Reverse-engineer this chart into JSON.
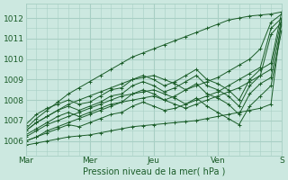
{
  "xlabel": "Pression niveau de la mer( hPa )",
  "xlim": [
    0,
    96
  ],
  "ylim": [
    1005.3,
    1012.7
  ],
  "yticks": [
    1006,
    1007,
    1008,
    1009,
    1010,
    1011,
    1012
  ],
  "xtick_positions": [
    0,
    24,
    48,
    72,
    96
  ],
  "xtick_labels": [
    "Mar",
    "Mer",
    "Jeu",
    "Ven",
    "S"
  ],
  "bg_color": "#cce8e0",
  "grid_color": "#a8cfc4",
  "line_color": "#1a5c28",
  "series": [
    {
      "x": [
        0,
        4,
        8,
        12,
        16,
        20,
        24,
        28,
        32,
        36,
        40,
        44,
        48,
        52,
        56,
        60,
        64,
        68,
        72,
        76,
        80,
        84,
        88,
        92,
        96
      ],
      "y": [
        1006.6,
        1007.1,
        1007.5,
        1007.9,
        1008.3,
        1008.6,
        1008.9,
        1009.2,
        1009.5,
        1009.8,
        1010.1,
        1010.3,
        1010.5,
        1010.7,
        1010.9,
        1011.1,
        1011.3,
        1011.5,
        1011.7,
        1011.9,
        1012.0,
        1012.1,
        1012.15,
        1012.2,
        1012.3
      ]
    },
    {
      "x": [
        0,
        4,
        8,
        12,
        16,
        20,
        24,
        28,
        32,
        36,
        40,
        44,
        48,
        52,
        56,
        60,
        64,
        68,
        72,
        76,
        80,
        84,
        88,
        92,
        96
      ],
      "y": [
        1006.5,
        1006.9,
        1007.2,
        1007.5,
        1007.8,
        1008.0,
        1008.2,
        1008.4,
        1008.6,
        1008.8,
        1009.0,
        1009.1,
        1009.2,
        1009.0,
        1008.8,
        1008.5,
        1008.7,
        1008.9,
        1009.1,
        1009.4,
        1009.7,
        1010.0,
        1010.5,
        1011.8,
        1012.2
      ]
    },
    {
      "x": [
        0,
        4,
        8,
        12,
        16,
        20,
        24,
        28,
        32,
        36,
        40,
        44,
        48,
        52,
        56,
        60,
        64,
        68,
        72,
        76,
        80,
        84,
        88,
        92,
        96
      ],
      "y": [
        1006.2,
        1006.5,
        1006.8,
        1007.0,
        1007.2,
        1007.4,
        1007.6,
        1007.8,
        1008.0,
        1008.2,
        1008.3,
        1008.4,
        1008.5,
        1008.3,
        1008.1,
        1007.8,
        1008.0,
        1008.2,
        1008.4,
        1008.7,
        1009.0,
        1009.3,
        1009.6,
        1011.5,
        1012.0
      ]
    },
    {
      "x": [
        0,
        4,
        8,
        12,
        16,
        20,
        24,
        28,
        32,
        36,
        40,
        44,
        48,
        52,
        56,
        60,
        64,
        68,
        72,
        76,
        80,
        84,
        88,
        92,
        96
      ],
      "y": [
        1006.0,
        1006.2,
        1006.5,
        1006.7,
        1006.9,
        1007.1,
        1007.3,
        1007.5,
        1007.7,
        1007.9,
        1008.0,
        1008.1,
        1008.2,
        1008.0,
        1007.8,
        1007.6,
        1007.8,
        1008.0,
        1008.2,
        1008.4,
        1008.6,
        1008.9,
        1009.2,
        1011.2,
        1011.8
      ]
    },
    {
      "x": [
        0,
        4,
        8,
        12,
        16,
        20,
        24,
        28,
        32,
        36,
        40,
        44,
        48,
        52,
        56,
        60,
        64,
        68,
        72,
        76,
        80,
        84,
        88,
        92,
        96
      ],
      "y": [
        1006.8,
        1007.3,
        1007.6,
        1007.8,
        1008.0,
        1007.8,
        1007.9,
        1008.2,
        1008.5,
        1008.6,
        1009.0,
        1009.2,
        1009.0,
        1008.7,
        1008.9,
        1009.2,
        1009.5,
        1009.0,
        1008.8,
        1008.5,
        1008.0,
        1009.0,
        1009.5,
        1009.8,
        1012.3
      ]
    },
    {
      "x": [
        0,
        4,
        8,
        12,
        16,
        20,
        24,
        28,
        32,
        36,
        40,
        44,
        48,
        52,
        56,
        60,
        64,
        68,
        72,
        76,
        80,
        84,
        88,
        92,
        96
      ],
      "y": [
        1006.5,
        1006.9,
        1007.2,
        1007.5,
        1007.7,
        1007.5,
        1007.7,
        1007.9,
        1008.2,
        1008.3,
        1008.7,
        1008.9,
        1008.7,
        1008.4,
        1008.6,
        1008.9,
        1009.2,
        1008.7,
        1008.5,
        1008.2,
        1007.7,
        1008.7,
        1009.2,
        1009.5,
        1012.0
      ]
    },
    {
      "x": [
        0,
        4,
        8,
        12,
        16,
        20,
        24,
        28,
        32,
        36,
        40,
        44,
        48,
        52,
        56,
        60,
        64,
        68,
        72,
        76,
        80,
        84,
        88,
        92,
        96
      ],
      "y": [
        1006.3,
        1006.6,
        1006.9,
        1007.2,
        1007.4,
        1007.2,
        1007.4,
        1007.6,
        1007.8,
        1007.9,
        1008.3,
        1008.5,
        1008.3,
        1008.0,
        1008.2,
        1008.5,
        1008.8,
        1008.3,
        1008.1,
        1007.8,
        1007.3,
        1008.3,
        1008.8,
        1009.1,
        1011.7
      ]
    },
    {
      "x": [
        0,
        4,
        8,
        12,
        16,
        20,
        24,
        28,
        32,
        36,
        40,
        44,
        48,
        52,
        56,
        60,
        64,
        68,
        72,
        76,
        80,
        84,
        88,
        92,
        96
      ],
      "y": [
        1006.0,
        1006.2,
        1006.4,
        1006.6,
        1006.8,
        1006.7,
        1006.9,
        1007.1,
        1007.3,
        1007.4,
        1007.7,
        1007.9,
        1007.7,
        1007.5,
        1007.6,
        1007.8,
        1008.1,
        1007.7,
        1007.4,
        1007.1,
        1006.8,
        1007.7,
        1008.2,
        1008.7,
        1011.4
      ]
    },
    {
      "x": [
        0,
        4,
        8,
        12,
        16,
        20,
        24,
        28,
        32,
        36,
        40,
        44,
        48,
        52,
        56,
        60,
        64,
        68,
        72,
        76,
        80,
        84,
        88,
        92,
        96
      ],
      "y": [
        1005.8,
        1005.9,
        1006.0,
        1006.1,
        1006.2,
        1006.25,
        1006.3,
        1006.4,
        1006.5,
        1006.6,
        1006.7,
        1006.75,
        1006.8,
        1006.85,
        1006.9,
        1006.95,
        1007.0,
        1007.1,
        1007.2,
        1007.3,
        1007.4,
        1007.5,
        1007.6,
        1007.8,
        1012.0
      ]
    }
  ]
}
